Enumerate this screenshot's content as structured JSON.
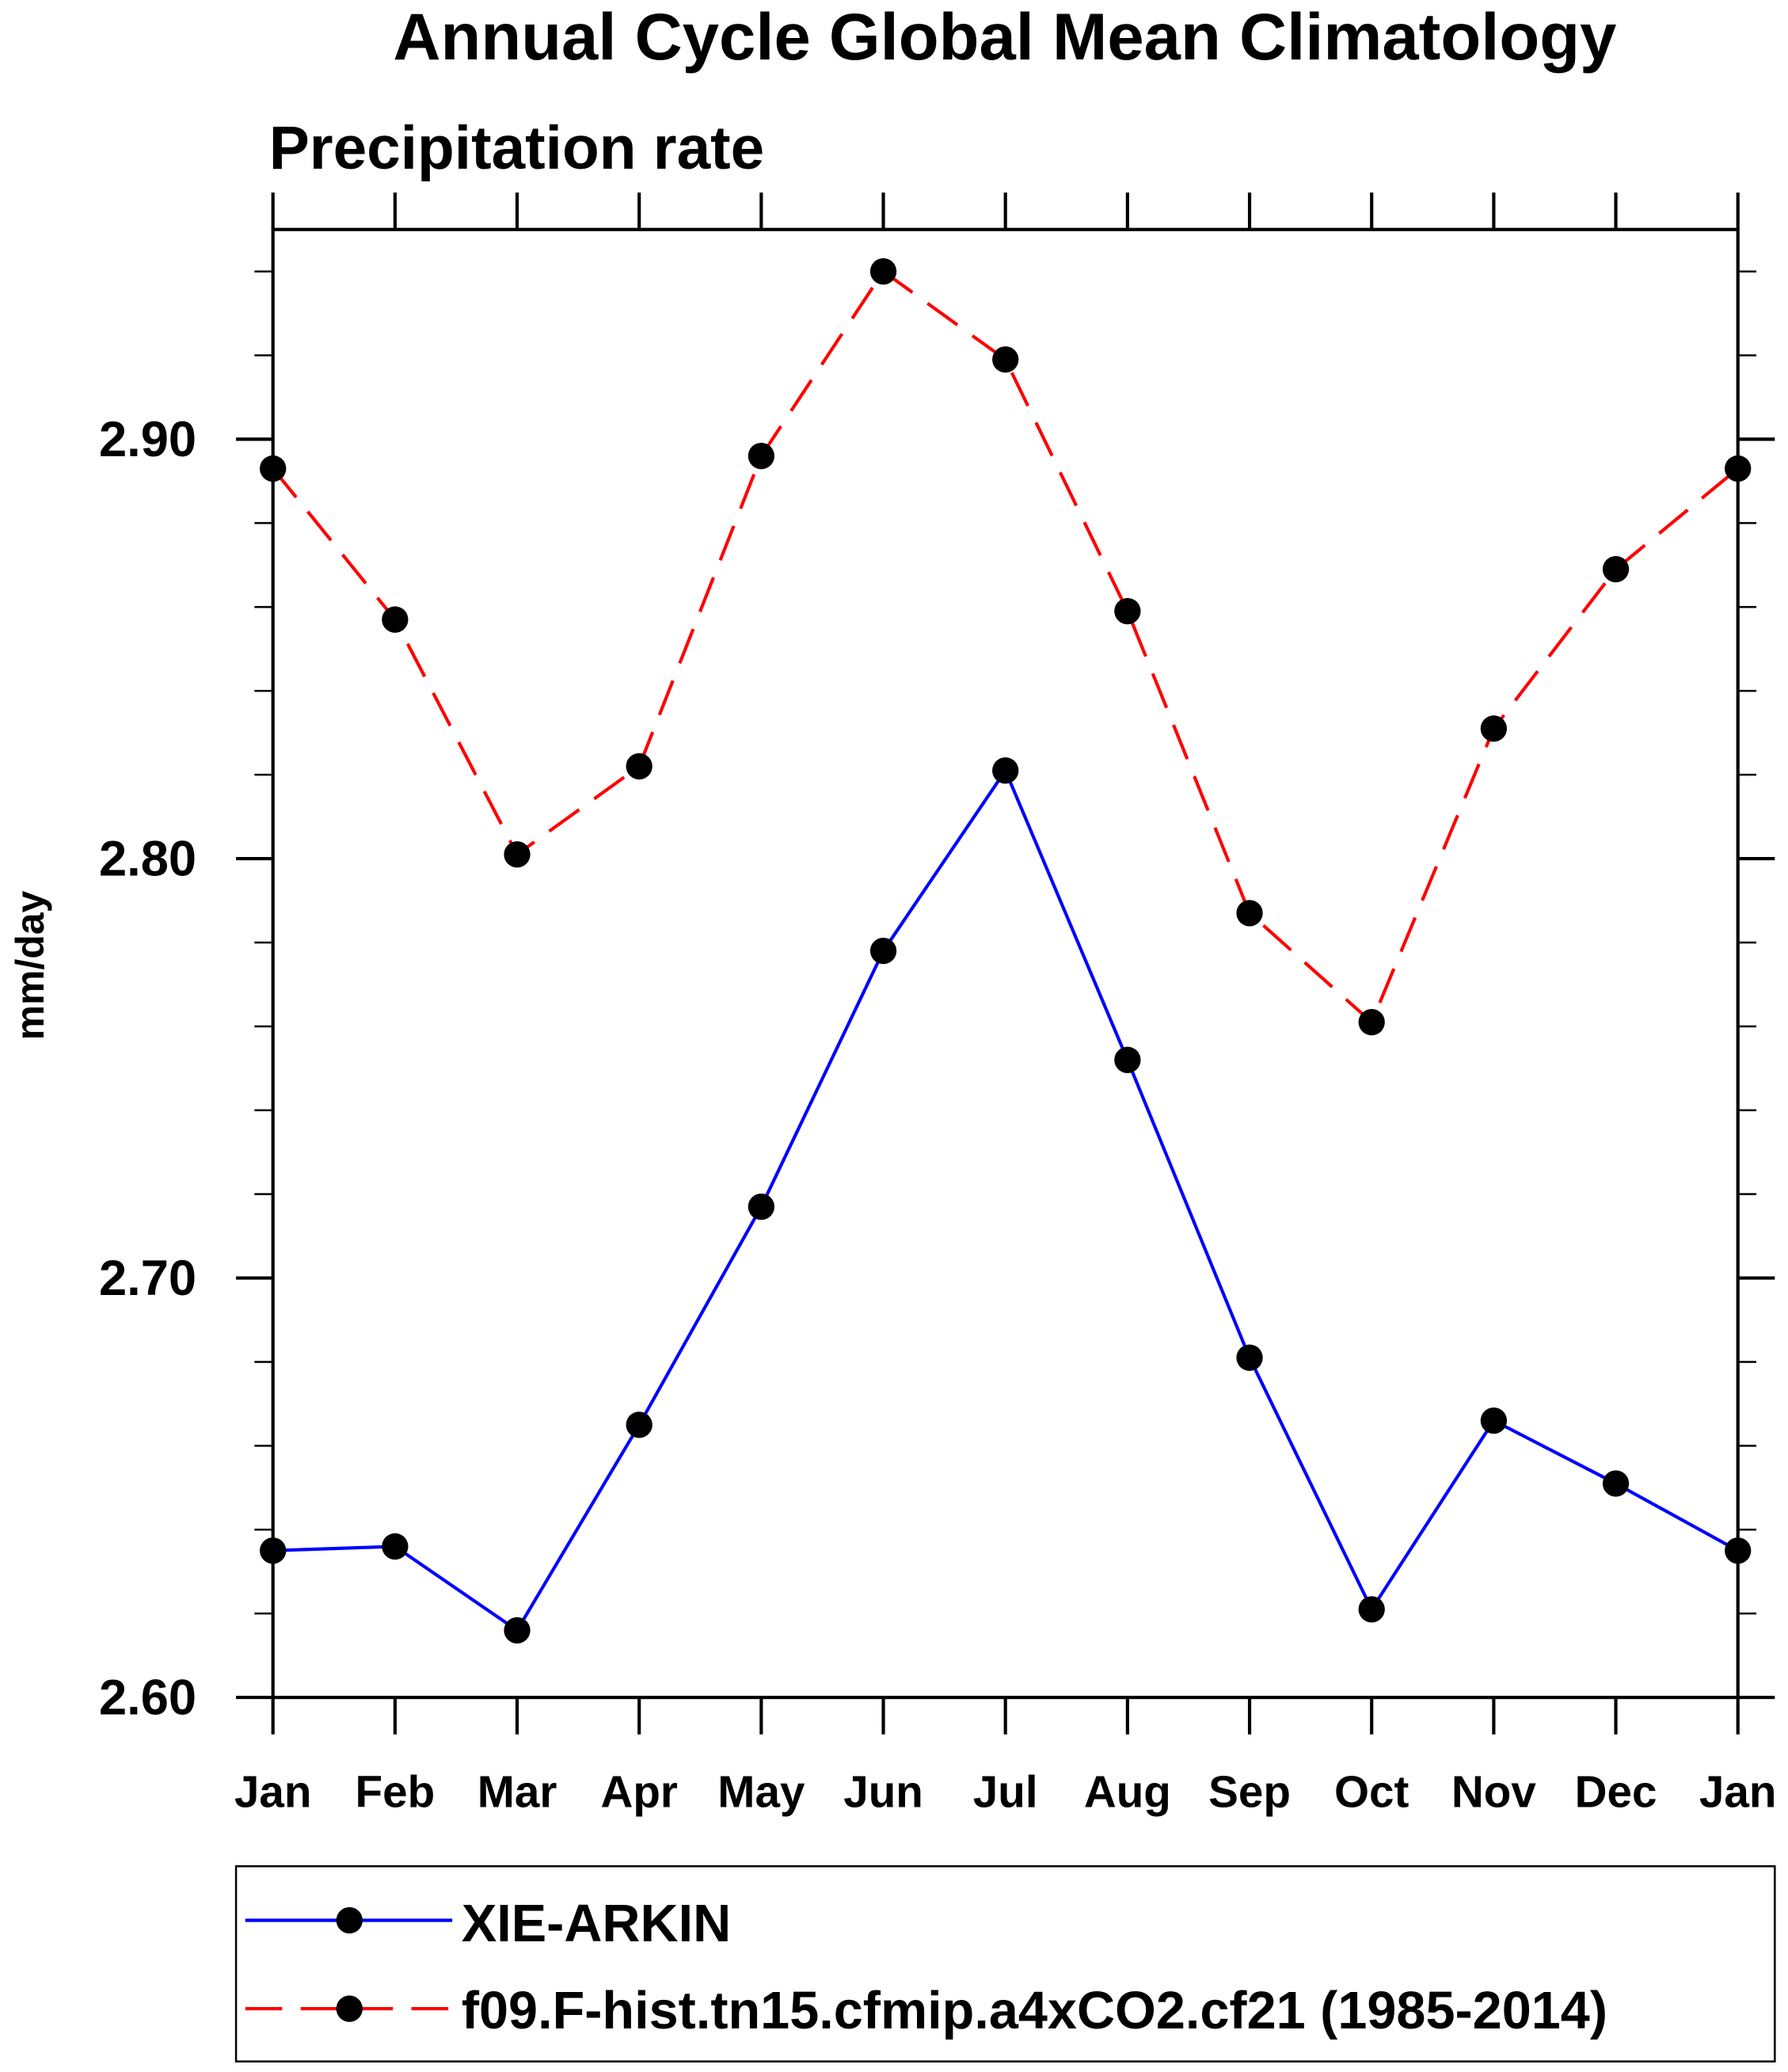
{
  "chart_data": {
    "type": "line",
    "title": "Annual Cycle Global Mean Climatology",
    "subtitle": "Precipitation rate",
    "xlabel": "",
    "ylabel": "mm/day",
    "categories": [
      "Jan",
      "Feb",
      "Mar",
      "Apr",
      "May",
      "Jun",
      "Jul",
      "Aug",
      "Sep",
      "Oct",
      "Nov",
      "Dec",
      "Jan"
    ],
    "ylim": [
      2.6,
      2.95
    ],
    "yticks": [
      "2.60",
      "2.70",
      "2.80",
      "2.90"
    ],
    "ytick_values": [
      2.6,
      2.7,
      2.8,
      2.9
    ],
    "minor_tick_step": 0.02,
    "grid": false,
    "legend_position": "bottom",
    "series": [
      {
        "name": "XIE-ARKIN",
        "color": "#0000ff",
        "dash": "solid",
        "values": [
          2.635,
          2.636,
          2.616,
          2.665,
          2.717,
          2.778,
          2.821,
          2.752,
          2.681,
          2.621,
          2.666,
          2.651,
          2.635
        ]
      },
      {
        "name": "f09.F-hist.tn15.cfmip.a4xCO2.cf21 (1985-2014)",
        "color": "#ff0000",
        "dash": "dashed",
        "values": [
          2.893,
          2.857,
          2.801,
          2.822,
          2.896,
          2.94,
          2.919,
          2.859,
          2.787,
          2.761,
          2.831,
          2.869,
          2.893
        ]
      }
    ]
  }
}
